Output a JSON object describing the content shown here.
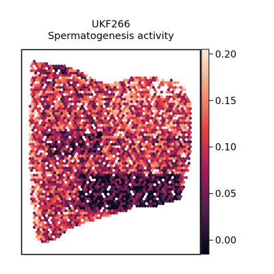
{
  "chart_data": {
    "type": "scatter",
    "title": "UKF266",
    "subtitle": "Spermatogenesis activity",
    "xlabel": "",
    "ylabel": "",
    "grid": false,
    "colorbar": {
      "label": "",
      "range": [
        -0.015,
        0.205
      ],
      "ticks": [
        "0.00",
        "0.05",
        "0.10",
        "0.15",
        "0.20"
      ],
      "tick_values": [
        0.0,
        0.05,
        0.1,
        0.15,
        0.2
      ],
      "colormap": "rocket",
      "colors": [
        "#03051a",
        "#4c1d4b",
        "#a11a5b",
        "#e83f3f",
        "#f69c73",
        "#faebdd"
      ]
    }
  }
}
